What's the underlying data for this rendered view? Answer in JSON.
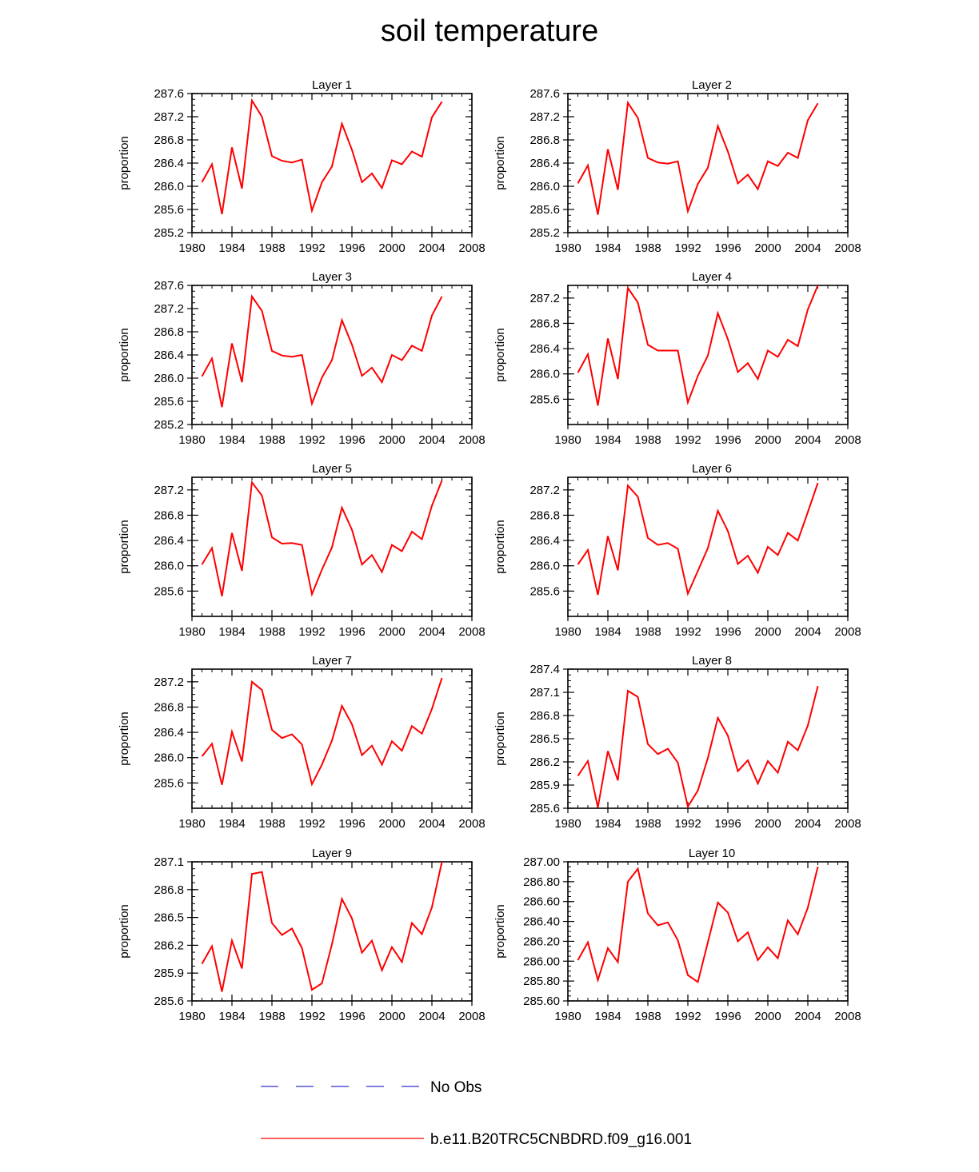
{
  "chart_data": {
    "type": "line",
    "title": "soil temperature",
    "x": [
      1981,
      1982,
      1983,
      1984,
      1985,
      1986,
      1987,
      1988,
      1989,
      1990,
      1991,
      1992,
      1993,
      1994,
      1995,
      1996,
      1997,
      1998,
      1999,
      2000,
      2001,
      2002,
      2003,
      2004,
      2005
    ],
    "xlim": [
      1980,
      2008
    ],
    "xticks": [
      "1980",
      "1984",
      "1988",
      "1992",
      "1996",
      "2000",
      "2004",
      "2008"
    ],
    "series_color": "#ff0000",
    "obs_color": "#3333cc",
    "legend": [
      {
        "label": "No Obs",
        "style": "dashed"
      },
      {
        "label": "b.e11.B20TRC5CNBDRD.f09_g16.001",
        "style": "solid"
      }
    ],
    "panels": [
      {
        "title": "Layer 1",
        "ylabel": "proportion",
        "ylim": [
          285.2,
          287.6
        ],
        "yticks": [
          "285.2",
          "285.6",
          "286.0",
          "286.4",
          "286.8",
          "287.2",
          "287.6"
        ],
        "values": [
          286.07,
          286.38,
          285.52,
          286.67,
          285.96,
          287.48,
          287.2,
          286.52,
          286.44,
          286.41,
          286.46,
          285.58,
          286.07,
          286.34,
          287.08,
          286.63,
          286.07,
          286.22,
          285.97,
          286.45,
          286.38,
          286.6,
          286.51,
          287.19,
          287.46
        ]
      },
      {
        "title": "Layer 2",
        "ylabel": "proportion",
        "ylim": [
          285.2,
          287.6
        ],
        "yticks": [
          "285.2",
          "285.6",
          "286.0",
          "286.4",
          "286.8",
          "287.2",
          "287.6"
        ],
        "values": [
          286.05,
          286.36,
          285.51,
          286.64,
          285.94,
          287.44,
          287.18,
          286.49,
          286.41,
          286.39,
          286.43,
          285.57,
          286.04,
          286.32,
          287.04,
          286.6,
          286.05,
          286.2,
          285.95,
          286.43,
          286.35,
          286.58,
          286.49,
          287.14,
          287.43
        ]
      },
      {
        "title": "Layer 3",
        "ylabel": "proportion",
        "ylim": [
          285.2,
          287.6
        ],
        "yticks": [
          "285.2",
          "285.6",
          "286.0",
          "286.4",
          "286.8",
          "287.2",
          "287.6"
        ],
        "values": [
          286.03,
          286.34,
          285.5,
          286.6,
          285.93,
          287.41,
          287.16,
          286.47,
          286.39,
          286.37,
          286.4,
          285.56,
          286.01,
          286.31,
          287.0,
          286.58,
          286.04,
          286.18,
          285.93,
          286.4,
          286.31,
          286.56,
          286.47,
          287.08,
          287.41
        ]
      },
      {
        "title": "Layer 4",
        "ylabel": "proportion",
        "ylim": [
          285.2,
          287.4
        ],
        "yticks": [
          "285.6",
          "286.0",
          "286.4",
          "286.8",
          "287.2"
        ],
        "values": [
          286.02,
          286.31,
          285.5,
          286.56,
          285.92,
          287.36,
          287.13,
          286.46,
          286.37,
          286.37,
          286.37,
          285.55,
          285.97,
          286.29,
          286.96,
          286.55,
          286.03,
          286.17,
          285.92,
          286.37,
          286.27,
          286.54,
          286.44,
          287.02,
          287.4
        ]
      },
      {
        "title": "Layer 5",
        "ylabel": "proportion",
        "ylim": [
          285.2,
          287.4
        ],
        "yticks": [
          "285.6",
          "286.0",
          "286.4",
          "286.8",
          "287.2"
        ],
        "values": [
          286.02,
          286.28,
          285.52,
          286.52,
          285.92,
          287.32,
          287.11,
          286.45,
          286.35,
          286.36,
          286.33,
          285.55,
          285.94,
          286.29,
          286.92,
          286.57,
          286.02,
          286.17,
          285.9,
          286.33,
          286.23,
          286.54,
          286.42,
          286.95,
          287.35
        ]
      },
      {
        "title": "Layer 6",
        "ylabel": "proportion",
        "ylim": [
          285.2,
          287.4
        ],
        "yticks": [
          "285.6",
          "286.0",
          "286.4",
          "286.8",
          "287.2"
        ],
        "values": [
          286.02,
          286.25,
          285.54,
          286.47,
          285.93,
          287.27,
          287.09,
          286.44,
          286.33,
          286.36,
          286.27,
          285.56,
          285.92,
          286.28,
          286.87,
          286.55,
          286.03,
          286.16,
          285.89,
          286.3,
          286.17,
          286.52,
          286.4,
          286.85,
          287.31
        ]
      },
      {
        "title": "Layer 7",
        "ylabel": "proportion",
        "ylim": [
          285.2,
          287.4
        ],
        "yticks": [
          "285.6",
          "286.0",
          "286.4",
          "286.8",
          "287.2"
        ],
        "values": [
          286.02,
          286.22,
          285.57,
          286.41,
          285.94,
          287.2,
          287.07,
          286.44,
          286.31,
          286.37,
          286.21,
          285.58,
          285.89,
          286.27,
          286.82,
          286.53,
          286.04,
          286.19,
          285.89,
          286.26,
          286.11,
          286.5,
          286.38,
          286.77,
          287.26
        ]
      },
      {
        "title": "Layer 8",
        "ylabel": "proportion",
        "ylim": [
          285.6,
          287.4
        ],
        "yticks": [
          "285.6",
          "285.9",
          "286.2",
          "286.5",
          "286.8",
          "287.1",
          "287.4"
        ],
        "values": [
          286.02,
          286.21,
          285.61,
          286.34,
          285.96,
          287.12,
          287.04,
          286.43,
          286.3,
          286.37,
          286.19,
          285.62,
          285.83,
          286.25,
          286.77,
          286.54,
          286.08,
          286.22,
          285.92,
          286.21,
          286.06,
          286.46,
          286.35,
          286.67,
          287.18
        ]
      },
      {
        "title": "Layer 9",
        "ylabel": "proportion",
        "ylim": [
          285.6,
          287.1
        ],
        "yticks": [
          "285.6",
          "285.9",
          "286.2",
          "286.5",
          "286.8",
          "287.1"
        ],
        "values": [
          286.0,
          286.19,
          285.7,
          286.25,
          285.95,
          286.97,
          286.99,
          286.44,
          286.31,
          286.38,
          286.17,
          285.72,
          285.79,
          286.21,
          286.7,
          286.49,
          286.12,
          286.25,
          285.93,
          286.18,
          286.02,
          286.44,
          286.32,
          286.61,
          287.1
        ]
      },
      {
        "title": "Layer 10",
        "ylabel": "proportion",
        "ylim": [
          285.6,
          287.0
        ],
        "yticks": [
          "285.60",
          "285.80",
          "286.00",
          "286.20",
          "286.40",
          "286.60",
          "286.80",
          "287.00"
        ],
        "values": [
          286.01,
          286.19,
          285.81,
          286.13,
          285.99,
          286.8,
          286.93,
          286.48,
          286.36,
          286.39,
          286.21,
          285.86,
          285.79,
          286.19,
          286.59,
          286.49,
          286.2,
          286.29,
          286.01,
          286.14,
          286.03,
          286.41,
          286.27,
          286.54,
          286.95
        ]
      }
    ]
  }
}
